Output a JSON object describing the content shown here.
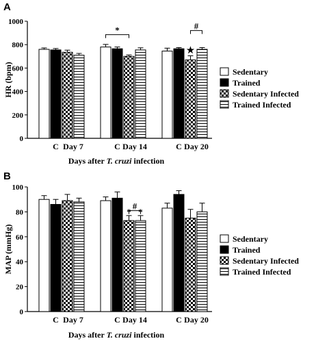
{
  "chart_data": [
    {
      "type": "bar",
      "panel_label": "A",
      "ylabel": "HR (bpm)",
      "xlabel_parts": [
        "Days after ",
        "T. cruzi",
        " infection"
      ],
      "ylim": [
        0,
        1000
      ],
      "yticks": [
        0,
        200,
        400,
        600,
        800,
        1000
      ],
      "group_labels": [
        {
          "control": "C",
          "day": "Day 7"
        },
        {
          "control": "C",
          "day": "Day 14"
        },
        {
          "control": "C",
          "day": "Day 20"
        }
      ],
      "series": [
        {
          "name": "Sedentary",
          "pattern": "white",
          "values": [
            760,
            780,
            745
          ],
          "errors": [
            12,
            22,
            25
          ]
        },
        {
          "name": "Trained",
          "pattern": "black",
          "values": [
            755,
            765,
            765
          ],
          "errors": [
            12,
            15,
            10
          ]
        },
        {
          "name": "Sedentary Infected",
          "pattern": "checker",
          "values": [
            735,
            700,
            670
          ],
          "errors": [
            18,
            12,
            35
          ]
        },
        {
          "name": "Trained Infected",
          "pattern": "hlines",
          "values": [
            710,
            755,
            760
          ],
          "errors": [
            15,
            18,
            15
          ]
        }
      ],
      "annotations": [
        {
          "text": "*",
          "type": "bracket",
          "group": 1,
          "from": 0,
          "to": 2,
          "y": 885
        },
        {
          "text": "#",
          "type": "bracket",
          "group": 2,
          "from": 2,
          "to": 3,
          "y": 920
        },
        {
          "text": "★",
          "type": "marker",
          "group": 2,
          "series": 2,
          "y": 735
        }
      ],
      "legend_position": "right"
    },
    {
      "type": "bar",
      "panel_label": "B",
      "ylabel": "MAP (mmHg)",
      "xlabel_parts": [
        "Days after ",
        "T. cruzi",
        " infection"
      ],
      "ylim": [
        0,
        100
      ],
      "yticks": [
        0,
        20,
        40,
        60,
        80,
        100
      ],
      "group_labels": [
        {
          "control": "C",
          "day": "Day 7"
        },
        {
          "control": "C",
          "day": "Day 14"
        },
        {
          "control": "C",
          "day": "Day 20"
        }
      ],
      "series": [
        {
          "name": "Sedentary",
          "pattern": "white",
          "values": [
            90,
            89,
            83
          ],
          "errors": [
            3,
            3,
            4
          ]
        },
        {
          "name": "Trained",
          "pattern": "black",
          "values": [
            86,
            91,
            94
          ],
          "errors": [
            4,
            5,
            3
          ]
        },
        {
          "name": "Sedentary Infected",
          "pattern": "checker",
          "values": [
            89,
            73,
            75
          ],
          "errors": [
            5,
            4,
            7
          ]
        },
        {
          "name": "Trained Infected",
          "pattern": "hlines",
          "values": [
            88,
            73,
            80
          ],
          "errors": [
            3,
            4,
            7
          ]
        }
      ],
      "annotations": [
        {
          "text": "#",
          "type": "bracket",
          "group": 1,
          "from": 2,
          "to": 3,
          "y": 81
        },
        {
          "text": "*",
          "type": "marker",
          "group": 1,
          "series": 2,
          "y": 78
        },
        {
          "text": "*",
          "type": "marker",
          "group": 1,
          "series": 3,
          "y": 78
        }
      ],
      "legend_position": "right"
    }
  ]
}
